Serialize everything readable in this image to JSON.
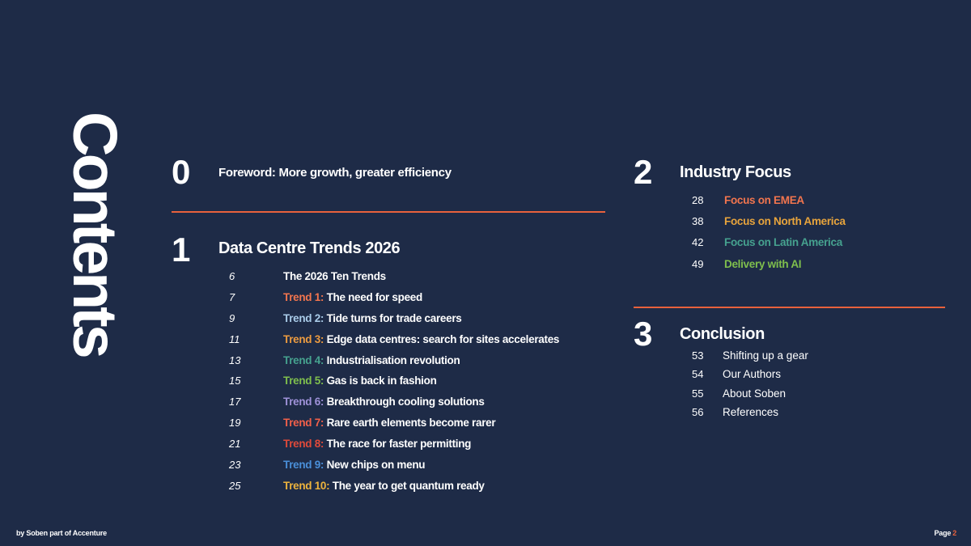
{
  "slide": {
    "vertical_title": "Contents",
    "background_color": "#1e2b47",
    "accent_color": "#e8613c"
  },
  "footer": {
    "credit": "by Soben part of Accenture",
    "page_label": "Page",
    "page_number": "2"
  },
  "foreword": {
    "number": "0",
    "title": "Foreword: More growth, greater efficiency"
  },
  "trends": {
    "number": "1",
    "title": "Data Centre Trends 2026",
    "items": [
      {
        "page": "6",
        "prefix": "",
        "prefix_color": "",
        "label": "The 2026 Ten Trends"
      },
      {
        "page": "7",
        "prefix": "Trend 1:",
        "prefix_color": "#f2754e",
        "label": "The need for speed"
      },
      {
        "page": "9",
        "prefix": "Trend 2:",
        "prefix_color": "#a9cbe8",
        "label": "Tide turns for trade careers"
      },
      {
        "page": "11",
        "prefix": "Trend 3:",
        "prefix_color": "#ec9b40",
        "label": "Edge data centres: search for sites accelerates"
      },
      {
        "page": "13",
        "prefix": "Trend 4:",
        "prefix_color": "#46a28f",
        "label": "Industrialisation revolution"
      },
      {
        "page": "15",
        "prefix": "Trend 5:",
        "prefix_color": "#7fbf4d",
        "label": "Gas is back in fashion"
      },
      {
        "page": "17",
        "prefix": "Trend 6:",
        "prefix_color": "#9f92d9",
        "label": "Breakthrough cooling solutions"
      },
      {
        "page": "19",
        "prefix": "Trend 7:",
        "prefix_color": "#f2604a",
        "label": "Rare earth elements become rarer"
      },
      {
        "page": "21",
        "prefix": "Trend 8:",
        "prefix_color": "#e04a3a",
        "label": "The race for faster permitting"
      },
      {
        "page": "23",
        "prefix": "Trend 9:",
        "prefix_color": "#4a8fd9",
        "label": "New chips on menu"
      },
      {
        "page": "25",
        "prefix": "Trend 10:",
        "prefix_color": "#edb33d",
        "label": "The year to get quantum ready"
      }
    ]
  },
  "industry_focus": {
    "number": "2",
    "title": "Industry Focus",
    "items": [
      {
        "page": "28",
        "label": "Focus on EMEA",
        "color": "#f2754e"
      },
      {
        "page": "38",
        "label": "Focus on North America",
        "color": "#e8a43c"
      },
      {
        "page": "42",
        "label": "Focus on Latin America",
        "color": "#46a28f"
      },
      {
        "page": "49",
        "label": "Delivery with AI",
        "color": "#7fbf4d"
      }
    ]
  },
  "conclusion": {
    "number": "3",
    "title": "Conclusion",
    "items": [
      {
        "page": "53",
        "label": "Shifting up a gear"
      },
      {
        "page": "54",
        "label": "Our Authors"
      },
      {
        "page": "55",
        "label": "About Soben"
      },
      {
        "page": "56",
        "label": "References"
      }
    ]
  }
}
